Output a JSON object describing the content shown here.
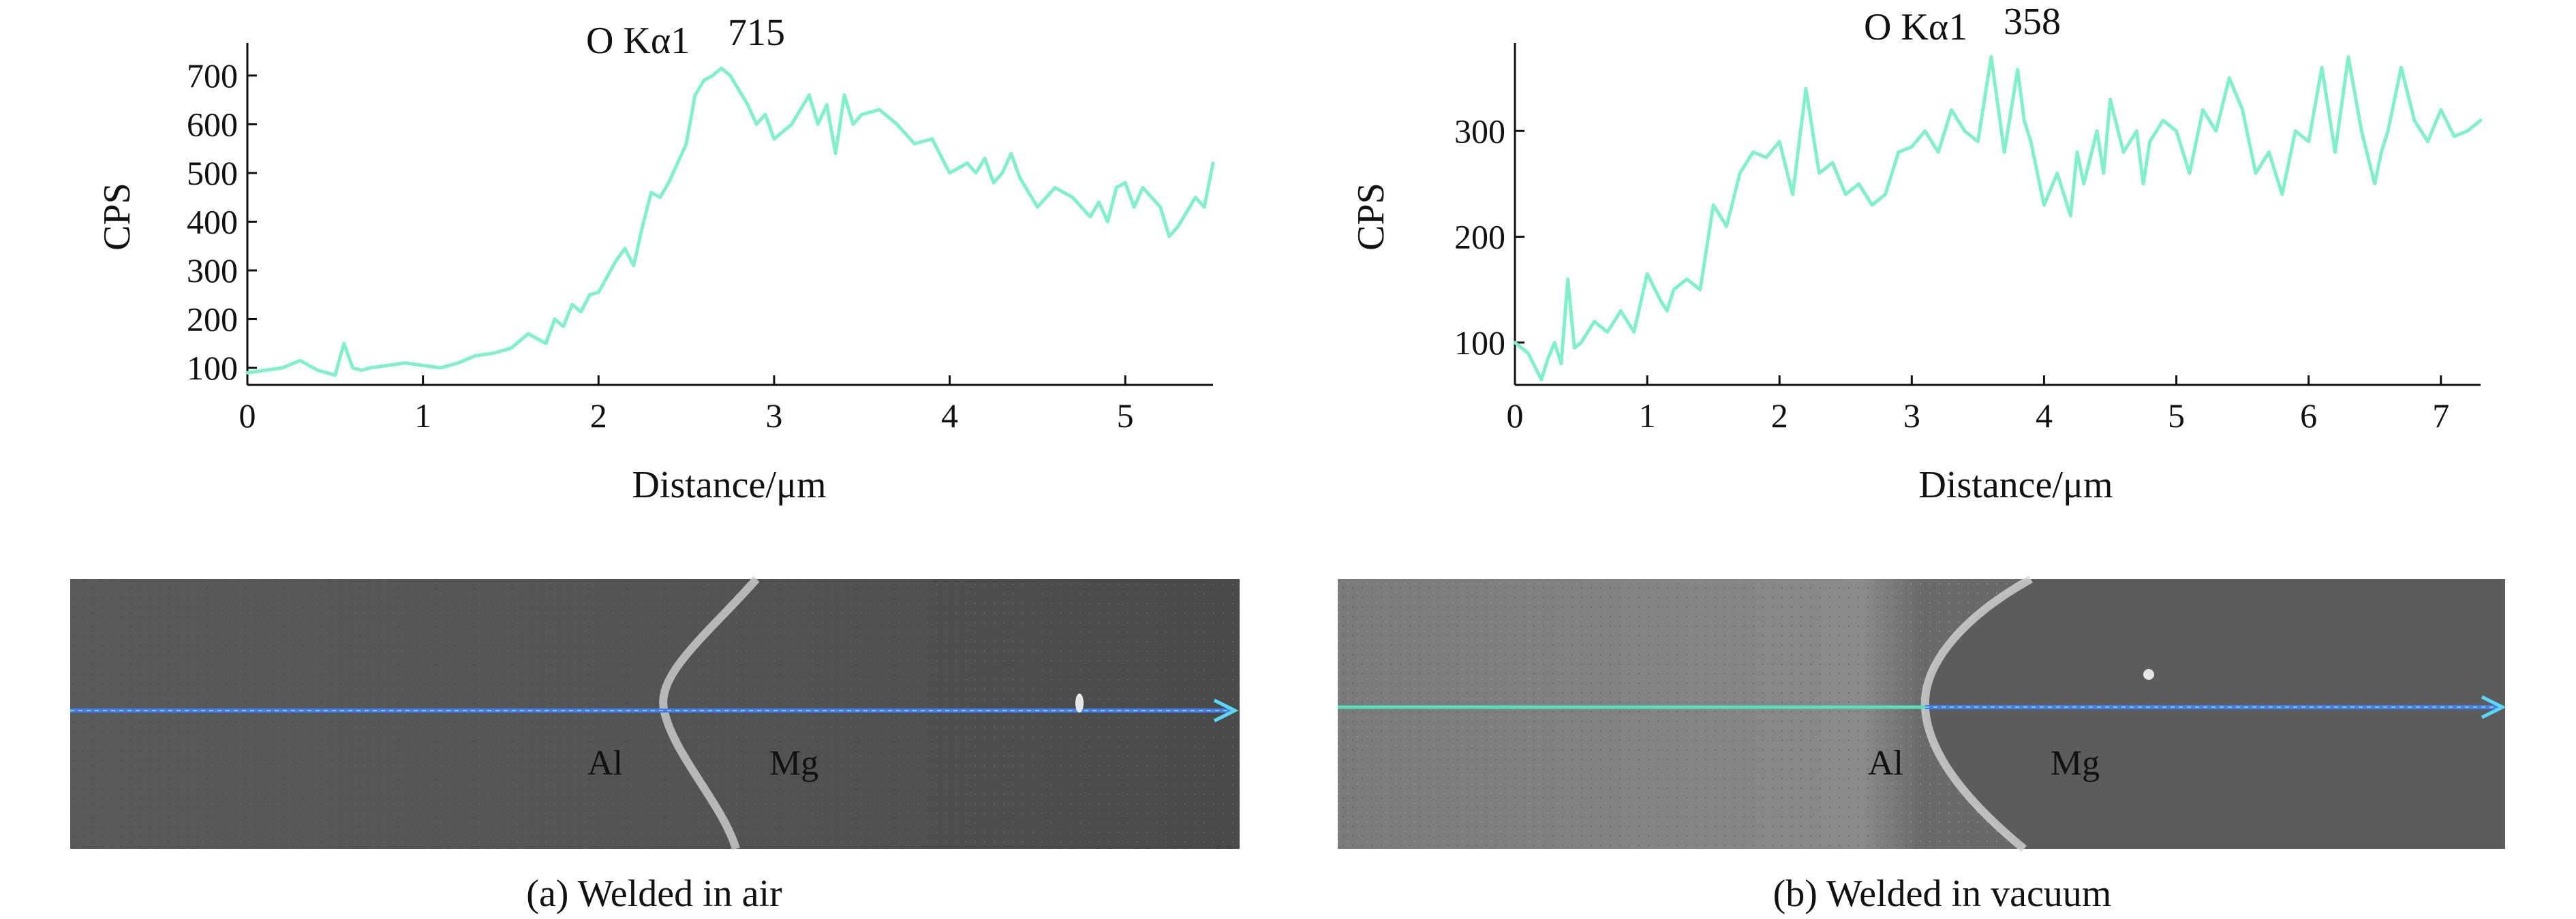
{
  "chart_data": [
    {
      "type": "line",
      "panel": "a",
      "caption": "(a) Welded in air",
      "annotation": {
        "label": "O Kα1",
        "value": "715"
      },
      "xlabel": "Distance/μm",
      "ylabel": "CPS",
      "xlim": [
        0,
        5.5
      ],
      "ylim": [
        65,
        760
      ],
      "xticks": [
        0,
        1,
        2,
        3,
        4,
        5
      ],
      "yticks": [
        100,
        200,
        300,
        400,
        500,
        600,
        700
      ],
      "line_color": "#7ff0c8",
      "series": [
        {
          "x": [
            0,
            0.1,
            0.2,
            0.3,
            0.4,
            0.5,
            0.55,
            0.6,
            0.65,
            0.7,
            0.8,
            0.9,
            1.0,
            1.1,
            1.2,
            1.3,
            1.4,
            1.5,
            1.6,
            1.7,
            1.75,
            1.8,
            1.85,
            1.9,
            1.95,
            2.0,
            2.1,
            2.15,
            2.2,
            2.25,
            2.3,
            2.35,
            2.4,
            2.5,
            2.55,
            2.6,
            2.65,
            2.7,
            2.75,
            2.8,
            2.85,
            2.9,
            2.95,
            3.0,
            3.1,
            3.2,
            3.25,
            3.3,
            3.35,
            3.4,
            3.45,
            3.5,
            3.6,
            3.7,
            3.8,
            3.9,
            4.0,
            4.1,
            4.15,
            4.2,
            4.25,
            4.3,
            4.35,
            4.4,
            4.5,
            4.6,
            4.7,
            4.8,
            4.85,
            4.9,
            4.95,
            5.0,
            5.05,
            5.1,
            5.2,
            5.25,
            5.3,
            5.35,
            5.4,
            5.45,
            5.5
          ],
          "y": [
            90,
            95,
            100,
            115,
            95,
            85,
            150,
            100,
            95,
            100,
            105,
            110,
            105,
            100,
            110,
            125,
            130,
            140,
            170,
            150,
            200,
            185,
            230,
            215,
            250,
            255,
            320,
            345,
            310,
            390,
            460,
            450,
            480,
            560,
            660,
            690,
            700,
            715,
            700,
            670,
            640,
            600,
            620,
            570,
            600,
            660,
            600,
            640,
            540,
            660,
            600,
            620,
            630,
            600,
            560,
            570,
            500,
            520,
            500,
            530,
            480,
            500,
            540,
            490,
            430,
            470,
            450,
            410,
            440,
            400,
            470,
            480,
            430,
            470,
            430,
            370,
            390,
            420,
            450,
            430,
            520
          ]
        }
      ],
      "image_labels": [
        "Al",
        "Mg"
      ]
    },
    {
      "type": "line",
      "panel": "b",
      "caption": "(b) Welded in vacuum",
      "annotation": {
        "label": "O Kα1",
        "value": "358"
      },
      "xlabel": "Distance/μm",
      "ylabel": "CPS",
      "xlim": [
        0,
        7.3
      ],
      "ylim": [
        60,
        380
      ],
      "xticks": [
        0,
        1,
        2,
        3,
        4,
        5,
        6,
        7
      ],
      "yticks": [
        100,
        200,
        300
      ],
      "line_color": "#7ff0c8",
      "series": [
        {
          "x": [
            0,
            0.1,
            0.2,
            0.25,
            0.3,
            0.35,
            0.4,
            0.45,
            0.5,
            0.6,
            0.7,
            0.8,
            0.9,
            1.0,
            1.1,
            1.15,
            1.2,
            1.3,
            1.4,
            1.5,
            1.6,
            1.7,
            1.8,
            1.9,
            2.0,
            2.1,
            2.2,
            2.3,
            2.4,
            2.5,
            2.6,
            2.7,
            2.8,
            2.9,
            3.0,
            3.1,
            3.2,
            3.3,
            3.4,
            3.5,
            3.6,
            3.7,
            3.8,
            3.85,
            3.9,
            4.0,
            4.1,
            4.2,
            4.25,
            4.3,
            4.4,
            4.45,
            4.5,
            4.6,
            4.7,
            4.75,
            4.8,
            4.9,
            5.0,
            5.1,
            5.2,
            5.3,
            5.4,
            5.5,
            5.6,
            5.7,
            5.8,
            5.9,
            6.0,
            6.1,
            6.2,
            6.3,
            6.4,
            6.5,
            6.55,
            6.6,
            6.7,
            6.8,
            6.9,
            7.0,
            7.1,
            7.2,
            7.3
          ],
          "y": [
            100,
            90,
            65,
            85,
            100,
            80,
            160,
            95,
            100,
            120,
            110,
            130,
            110,
            165,
            140,
            130,
            150,
            160,
            150,
            230,
            210,
            260,
            280,
            275,
            290,
            240,
            340,
            260,
            270,
            240,
            250,
            230,
            240,
            280,
            285,
            300,
            280,
            320,
            300,
            290,
            370,
            280,
            358,
            310,
            290,
            230,
            260,
            220,
            280,
            250,
            300,
            260,
            330,
            280,
            300,
            250,
            290,
            310,
            300,
            260,
            320,
            300,
            350,
            320,
            260,
            280,
            240,
            300,
            290,
            360,
            280,
            370,
            300,
            250,
            280,
            300,
            360,
            310,
            290,
            320,
            295,
            300,
            310
          ]
        }
      ],
      "image_labels": [
        "Al",
        "Mg"
      ]
    }
  ]
}
